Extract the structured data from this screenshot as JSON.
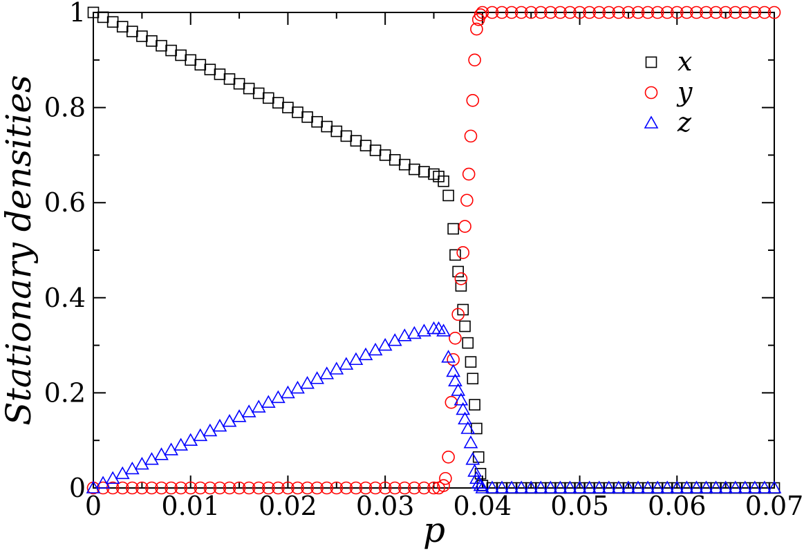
{
  "chart_data": {
    "type": "scatter",
    "xlabel": "p",
    "ylabel": "Stationary densities",
    "xlim": [
      0,
      0.07
    ],
    "ylim": [
      0,
      1
    ],
    "xticks": [
      "0",
      "0.01",
      "0.02",
      "0.03",
      "0.04",
      "0.05",
      "0.06",
      "0.07"
    ],
    "yticks": [
      "0",
      "0.2",
      "0.4",
      "0.6",
      "0.8",
      "1"
    ],
    "xtick_values": [
      0,
      0.01,
      0.02,
      0.03,
      0.04,
      0.05,
      0.06,
      0.07
    ],
    "ytick_values": [
      0,
      0.2,
      0.4,
      0.6,
      0.8,
      1
    ],
    "grid": false,
    "legend_position": "top-right",
    "series": [
      {
        "name": "x",
        "marker": "square",
        "color": "#000000",
        "x": [
          0,
          0.001,
          0.002,
          0.003,
          0.004,
          0.005,
          0.006,
          0.007,
          0.008,
          0.009,
          0.01,
          0.011,
          0.012,
          0.013,
          0.014,
          0.015,
          0.016,
          0.017,
          0.018,
          0.019,
          0.02,
          0.021,
          0.022,
          0.023,
          0.024,
          0.025,
          0.026,
          0.027,
          0.028,
          0.029,
          0.03,
          0.031,
          0.032,
          0.033,
          0.034,
          0.035,
          0.0355,
          0.036,
          0.0365,
          0.037,
          0.0372,
          0.0375,
          0.0378,
          0.038,
          0.0382,
          0.0385,
          0.0388,
          0.039,
          0.0392,
          0.0394,
          0.0396,
          0.0398,
          0.04,
          0.041,
          0.042,
          0.043,
          0.044,
          0.045,
          0.046,
          0.047,
          0.048,
          0.049,
          0.05,
          0.051,
          0.052,
          0.053,
          0.054,
          0.055,
          0.056,
          0.057,
          0.058,
          0.059,
          0.06,
          0.061,
          0.062,
          0.063,
          0.064,
          0.065,
          0.066,
          0.067,
          0.068,
          0.069,
          0.07
        ],
        "y": [
          1.0,
          0.99,
          0.98,
          0.97,
          0.96,
          0.95,
          0.94,
          0.93,
          0.92,
          0.91,
          0.9,
          0.89,
          0.88,
          0.87,
          0.86,
          0.85,
          0.84,
          0.83,
          0.82,
          0.81,
          0.8,
          0.79,
          0.78,
          0.77,
          0.76,
          0.75,
          0.74,
          0.73,
          0.72,
          0.71,
          0.7,
          0.69,
          0.68,
          0.67,
          0.665,
          0.66,
          0.655,
          0.645,
          0.615,
          0.545,
          0.49,
          0.455,
          0.425,
          0.375,
          0.34,
          0.305,
          0.265,
          0.23,
          0.175,
          0.125,
          0.065,
          0.03,
          0.005,
          0.0,
          0.0,
          0.0,
          0.0,
          0.0,
          0.0,
          0.0,
          0.0,
          0.0,
          0.0,
          0.0,
          0.0,
          0.0,
          0.0,
          0.0,
          0.0,
          0.0,
          0.0,
          0.0,
          0.0,
          0.0,
          0.0,
          0.0,
          0.0,
          0.0,
          0.0,
          0.0,
          0.0,
          0.0,
          0.0
        ]
      },
      {
        "name": "y",
        "marker": "circle",
        "color": "#ff0000",
        "x": [
          0,
          0.001,
          0.002,
          0.003,
          0.004,
          0.005,
          0.006,
          0.007,
          0.008,
          0.009,
          0.01,
          0.011,
          0.012,
          0.013,
          0.014,
          0.015,
          0.016,
          0.017,
          0.018,
          0.019,
          0.02,
          0.021,
          0.022,
          0.023,
          0.024,
          0.025,
          0.026,
          0.027,
          0.028,
          0.029,
          0.03,
          0.031,
          0.032,
          0.033,
          0.034,
          0.035,
          0.0355,
          0.036,
          0.0362,
          0.0365,
          0.0368,
          0.037,
          0.0372,
          0.0375,
          0.0378,
          0.038,
          0.0382,
          0.0384,
          0.0386,
          0.0388,
          0.039,
          0.0392,
          0.0394,
          0.0396,
          0.0398,
          0.04,
          0.041,
          0.042,
          0.043,
          0.044,
          0.045,
          0.046,
          0.047,
          0.048,
          0.049,
          0.05,
          0.051,
          0.052,
          0.053,
          0.054,
          0.055,
          0.056,
          0.057,
          0.058,
          0.059,
          0.06,
          0.061,
          0.062,
          0.063,
          0.064,
          0.065,
          0.066,
          0.067,
          0.068,
          0.069,
          0.07
        ],
        "y": [
          0,
          0,
          0,
          0,
          0,
          0,
          0,
          0,
          0,
          0,
          0,
          0,
          0,
          0,
          0,
          0,
          0,
          0,
          0,
          0,
          0,
          0,
          0,
          0,
          0,
          0,
          0,
          0,
          0,
          0,
          0,
          0,
          0,
          0,
          0,
          0,
          0,
          0.005,
          0.02,
          0.065,
          0.18,
          0.27,
          0.315,
          0.365,
          0.44,
          0.495,
          0.55,
          0.605,
          0.66,
          0.74,
          0.815,
          0.9,
          0.965,
          0.985,
          0.995,
          1.0,
          1.0,
          1.0,
          1.0,
          1.0,
          1.0,
          1.0,
          1.0,
          1.0,
          1.0,
          1.0,
          1.0,
          1.0,
          1.0,
          1.0,
          1.0,
          1.0,
          1.0,
          1.0,
          1.0,
          1.0,
          1.0,
          1.0,
          1.0,
          1.0,
          1.0,
          1.0,
          1.0,
          1.0,
          1.0,
          1.0
        ]
      },
      {
        "name": "z",
        "marker": "triangle",
        "color": "#0000ff",
        "x": [
          0,
          0.001,
          0.002,
          0.003,
          0.004,
          0.005,
          0.006,
          0.007,
          0.008,
          0.009,
          0.01,
          0.011,
          0.012,
          0.013,
          0.014,
          0.015,
          0.016,
          0.017,
          0.018,
          0.019,
          0.02,
          0.021,
          0.022,
          0.023,
          0.024,
          0.025,
          0.026,
          0.027,
          0.028,
          0.029,
          0.03,
          0.031,
          0.032,
          0.033,
          0.034,
          0.035,
          0.0355,
          0.036,
          0.0365,
          0.037,
          0.0372,
          0.0375,
          0.0378,
          0.038,
          0.0382,
          0.0385,
          0.0388,
          0.039,
          0.0392,
          0.0394,
          0.0396,
          0.0398,
          0.04,
          0.041,
          0.042,
          0.043,
          0.044,
          0.045,
          0.046,
          0.047,
          0.048,
          0.049,
          0.05,
          0.051,
          0.052,
          0.053,
          0.054,
          0.055,
          0.056,
          0.057,
          0.058,
          0.059,
          0.06,
          0.061,
          0.062,
          0.063,
          0.064,
          0.065,
          0.066,
          0.067,
          0.068,
          0.069,
          0.07
        ],
        "y": [
          0,
          0.01,
          0.02,
          0.03,
          0.04,
          0.05,
          0.06,
          0.07,
          0.08,
          0.09,
          0.1,
          0.11,
          0.12,
          0.13,
          0.14,
          0.15,
          0.16,
          0.17,
          0.18,
          0.19,
          0.2,
          0.21,
          0.22,
          0.23,
          0.24,
          0.25,
          0.26,
          0.27,
          0.28,
          0.29,
          0.3,
          0.31,
          0.32,
          0.325,
          0.33,
          0.335,
          0.335,
          0.33,
          0.275,
          0.245,
          0.225,
          0.205,
          0.185,
          0.165,
          0.145,
          0.125,
          0.095,
          0.06,
          0.035,
          0.02,
          0.01,
          0.005,
          0.0,
          0.0,
          0.0,
          0.0,
          0.0,
          0.0,
          0.0,
          0.0,
          0.0,
          0.0,
          0.0,
          0.0,
          0.0,
          0.0,
          0.0,
          0.0,
          0.0,
          0.0,
          0.0,
          0.0,
          0.0,
          0.0,
          0.0,
          0.0,
          0.0,
          0.0,
          0.0,
          0.0,
          0.0,
          0.0,
          0.0
        ]
      }
    ]
  }
}
